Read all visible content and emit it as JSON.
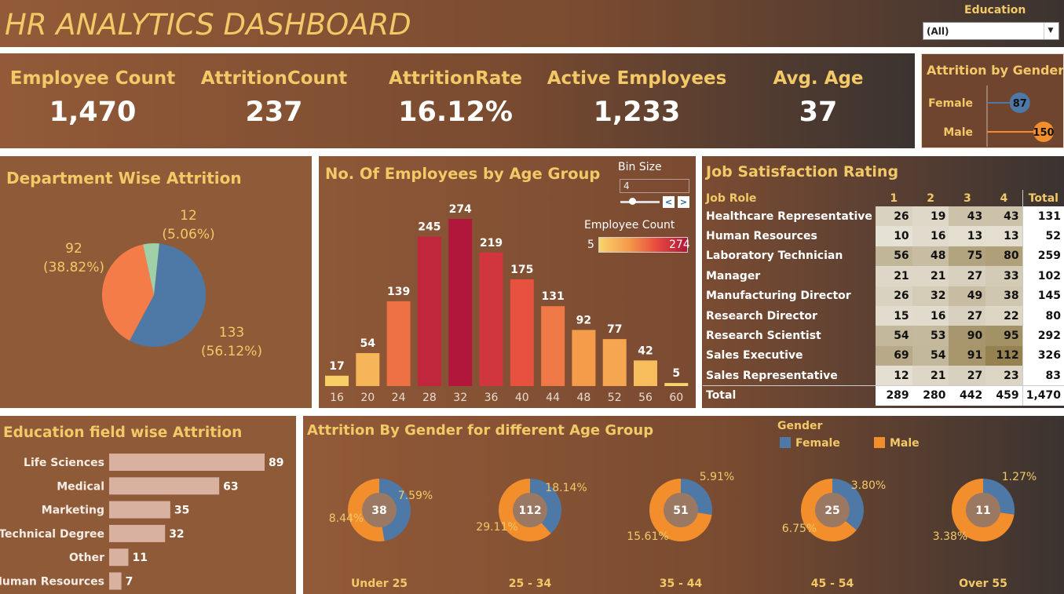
{
  "header": {
    "title": "HR ANALYTICS DASHBOARD"
  },
  "filter": {
    "label": "Education",
    "value": "(All)"
  },
  "kpis": [
    {
      "label": "Employee Count",
      "value": "1,470"
    },
    {
      "label": "AttritionCount",
      "value": "237"
    },
    {
      "label": "AttritionRate",
      "value": "16.12%"
    },
    {
      "label": "Active Employees",
      "value": "1,233"
    },
    {
      "label": "Avg. Age",
      "value": "37"
    }
  ],
  "gender_attrition": {
    "title": "Attrition by Gender",
    "chart_data": {
      "type": "lollipop",
      "categories": [
        "Female",
        "Male"
      ],
      "values": [
        87,
        150
      ],
      "colors": [
        "#4e79a7",
        "#f28e2b"
      ]
    }
  },
  "department": {
    "title": "Department Wise Attrition",
    "chart_data": {
      "type": "pie",
      "slices": [
        {
          "value": 133,
          "label": "133",
          "pct": "(56.12%)",
          "color": "#4e79a7"
        },
        {
          "value": 92,
          "label": "92",
          "pct": "(38.82%)",
          "color": "#f47c48"
        },
        {
          "value": 12,
          "label": "12",
          "pct": "(5.06%)",
          "color": "#9fd0a8"
        }
      ]
    }
  },
  "age_group": {
    "title": "No. Of Employees by Age Group",
    "bin_label": "Bin Size",
    "bin_value": "4",
    "legend_title": "Employee Count",
    "legend_min": "5",
    "legend_max": "274",
    "chart_data": {
      "type": "bar",
      "categories": [
        "16",
        "20",
        "24",
        "28",
        "32",
        "36",
        "40",
        "44",
        "48",
        "52",
        "56",
        "60"
      ],
      "values": [
        17,
        54,
        139,
        245,
        274,
        219,
        175,
        131,
        92,
        77,
        42,
        5
      ]
    }
  },
  "job_satisfaction": {
    "title": "Job Satisfaction Rating",
    "chart_data": {
      "type": "table",
      "columns": [
        "Job Role",
        "1",
        "2",
        "3",
        "4",
        "Total"
      ],
      "rows": [
        [
          "Healthcare Representative",
          "26",
          "19",
          "43",
          "43",
          "131"
        ],
        [
          "Human Resources",
          "10",
          "16",
          "13",
          "13",
          "52"
        ],
        [
          "Laboratory Technician",
          "56",
          "48",
          "75",
          "80",
          "259"
        ],
        [
          "Manager",
          "21",
          "21",
          "27",
          "33",
          "102"
        ],
        [
          "Manufacturing Director",
          "26",
          "32",
          "49",
          "38",
          "145"
        ],
        [
          "Research Director",
          "15",
          "16",
          "27",
          "22",
          "80"
        ],
        [
          "Research Scientist",
          "54",
          "53",
          "90",
          "95",
          "292"
        ],
        [
          "Sales Executive",
          "69",
          "54",
          "91",
          "112",
          "326"
        ],
        [
          "Sales Representative",
          "12",
          "21",
          "27",
          "23",
          "83"
        ]
      ],
      "total_row": [
        "Total",
        "289",
        "280",
        "442",
        "459",
        "1,470"
      ]
    }
  },
  "education_field": {
    "title": "Education field wise Attrition",
    "chart_data": {
      "type": "bar",
      "categories": [
        "Life Sciences",
        "Medical",
        "Marketing",
        "Technical Degree",
        "Other",
        "Human Resources"
      ],
      "values": [
        89,
        63,
        35,
        32,
        11,
        7
      ],
      "color": "#d8b1a1"
    }
  },
  "gender_age": {
    "title": "Attrition By Gender for different Age Group",
    "legend_title": "Gender",
    "legend": [
      {
        "name": "Female",
        "color": "#4e79a7"
      },
      {
        "name": "Male",
        "color": "#f28e2b"
      }
    ],
    "chart_data": {
      "type": "pie",
      "groups": [
        {
          "label": "Under 25",
          "total": 38,
          "female_pct": 7.59,
          "male_pct": 8.44,
          "female_label": "7.59%",
          "male_label": "8.44%"
        },
        {
          "label": "25 - 34",
          "total": 112,
          "female_pct": 18.14,
          "male_pct": 29.11,
          "female_label": "18.14%",
          "male_label": "29.11%"
        },
        {
          "label": "35 - 44",
          "total": 51,
          "female_pct": 5.91,
          "male_pct": 15.61,
          "female_label": "5.91%",
          "male_label": "15.61%"
        },
        {
          "label": "45 - 54",
          "total": 25,
          "female_pct": 3.8,
          "male_pct": 6.75,
          "female_label": "3.80%",
          "male_label": "6.75%"
        },
        {
          "label": "Over 55",
          "total": 11,
          "female_pct": 1.27,
          "male_pct": 3.38,
          "female_label": "1.27%",
          "male_label": "3.38%"
        }
      ]
    }
  }
}
